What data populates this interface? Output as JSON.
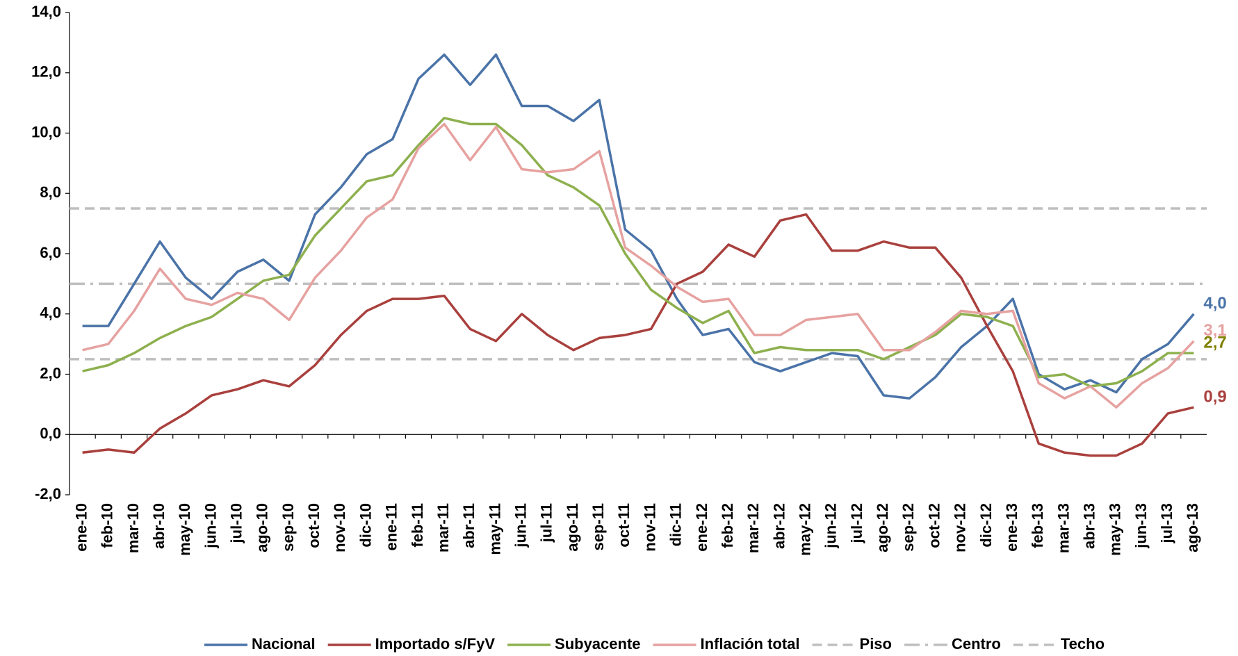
{
  "chart_data": {
    "type": "line",
    "categories": [
      "ene-10",
      "feb-10",
      "mar-10",
      "abr-10",
      "may-10",
      "jun-10",
      "jul-10",
      "ago-10",
      "sep-10",
      "oct-10",
      "nov-10",
      "dic-10",
      "ene-11",
      "feb-11",
      "mar-11",
      "abr-11",
      "may-11",
      "jun-11",
      "jul-11",
      "ago-11",
      "sep-11",
      "oct-11",
      "nov-11",
      "dic-11",
      "ene-12",
      "feb-12",
      "mar-12",
      "abr-12",
      "may-12",
      "jun-12",
      "jul-12",
      "ago-12",
      "sep-12",
      "oct-12",
      "nov-12",
      "dic-12",
      "ene-13",
      "feb-13",
      "mar-13",
      "abr-13",
      "may-13",
      "jun-13",
      "jul-13",
      "ago-13"
    ],
    "series": [
      {
        "name": "Nacional",
        "color": "#4a73a8",
        "label_color": "#4a73a8",
        "values": [
          3.6,
          3.6,
          5.0,
          6.4,
          5.2,
          4.5,
          5.4,
          5.8,
          5.1,
          7.3,
          8.2,
          9.3,
          9.8,
          11.8,
          12.6,
          11.6,
          12.6,
          10.9,
          10.9,
          10.4,
          11.1,
          6.8,
          6.1,
          4.5,
          3.3,
          3.5,
          2.4,
          2.1,
          2.4,
          2.7,
          2.6,
          1.3,
          1.2,
          1.9,
          2.9,
          3.6,
          4.5,
          2.0,
          1.5,
          1.8,
          1.4,
          2.5,
          3.0,
          4.0
        ],
        "value_labels": [
          null,
          null,
          null,
          null,
          null,
          null,
          null,
          null,
          null,
          null,
          null,
          null,
          null,
          null,
          null,
          null,
          null,
          null,
          null,
          null,
          null,
          null,
          null,
          null,
          null,
          null,
          null,
          null,
          null,
          null,
          null,
          null,
          null,
          null,
          null,
          null,
          null,
          null,
          null,
          null,
          null,
          null,
          null,
          "4,0"
        ]
      },
      {
        "name": "Importado s/FyV",
        "color": "#a9403d",
        "label_color": "#a9403d",
        "values": [
          -0.6,
          -0.5,
          -0.6,
          0.2,
          0.7,
          1.3,
          1.5,
          1.8,
          1.6,
          2.3,
          3.3,
          4.1,
          4.5,
          4.5,
          4.6,
          3.5,
          3.1,
          4.0,
          3.3,
          2.8,
          3.2,
          3.3,
          3.5,
          5.0,
          5.4,
          6.3,
          5.9,
          7.1,
          7.3,
          6.1,
          6.1,
          6.4,
          6.2,
          6.2,
          5.2,
          3.6,
          2.1,
          -0.3,
          -0.6,
          -0.7,
          -0.7,
          -0.3,
          0.7,
          0.9
        ],
        "value_labels": [
          null,
          null,
          null,
          null,
          null,
          null,
          null,
          null,
          null,
          null,
          null,
          null,
          null,
          null,
          null,
          null,
          null,
          null,
          null,
          null,
          null,
          null,
          null,
          null,
          null,
          null,
          null,
          null,
          null,
          null,
          null,
          null,
          null,
          null,
          null,
          null,
          null,
          null,
          null,
          null,
          null,
          null,
          null,
          "0,9"
        ]
      },
      {
        "name": "Subyacente",
        "color": "#8db04e",
        "label_color": "#7f7f00",
        "values": [
          2.1,
          2.3,
          2.7,
          3.2,
          3.6,
          3.9,
          4.5,
          5.1,
          5.3,
          6.6,
          7.5,
          8.4,
          8.6,
          9.6,
          10.5,
          10.3,
          10.3,
          9.6,
          8.6,
          8.2,
          7.6,
          6.0,
          4.8,
          4.2,
          3.7,
          4.1,
          2.7,
          2.9,
          2.8,
          2.8,
          2.8,
          2.5,
          2.9,
          3.3,
          4.0,
          3.9,
          3.6,
          1.9,
          2.0,
          1.6,
          1.7,
          2.1,
          2.7,
          2.7
        ],
        "value_labels": [
          null,
          null,
          null,
          null,
          null,
          null,
          null,
          null,
          null,
          null,
          null,
          null,
          null,
          null,
          null,
          null,
          null,
          null,
          null,
          null,
          null,
          null,
          null,
          null,
          null,
          null,
          null,
          null,
          null,
          null,
          null,
          null,
          null,
          null,
          null,
          null,
          null,
          null,
          null,
          null,
          null,
          null,
          null,
          "2,7"
        ]
      },
      {
        "name": "Inflación total",
        "color": "#e6a2a0",
        "label_color": "#e6a2a0",
        "values": [
          2.8,
          3.0,
          4.1,
          5.5,
          4.5,
          4.3,
          4.7,
          4.5,
          3.8,
          5.2,
          6.1,
          7.2,
          7.8,
          9.5,
          10.3,
          9.1,
          10.2,
          8.8,
          8.7,
          8.8,
          9.4,
          6.2,
          5.6,
          4.9,
          4.4,
          4.5,
          3.3,
          3.3,
          3.8,
          3.9,
          4.0,
          2.8,
          2.8,
          3.4,
          4.1,
          4.0,
          4.1,
          1.7,
          1.2,
          1.6,
          0.9,
          1.7,
          2.2,
          3.1
        ],
        "value_labels": [
          null,
          null,
          null,
          null,
          null,
          null,
          null,
          null,
          null,
          null,
          null,
          null,
          null,
          null,
          null,
          null,
          null,
          null,
          null,
          null,
          null,
          null,
          null,
          null,
          null,
          null,
          null,
          null,
          null,
          null,
          null,
          null,
          null,
          null,
          null,
          null,
          null,
          null,
          null,
          null,
          null,
          null,
          null,
          "3,1"
        ]
      }
    ],
    "reference_lines": [
      {
        "name": "Piso",
        "value": 2.5,
        "color": "#bfbfbf",
        "dash": "dashed"
      },
      {
        "name": "Centro",
        "value": 5.0,
        "color": "#bfbfbf",
        "dash": "dashdot"
      },
      {
        "name": "Techo",
        "value": 7.5,
        "color": "#bfbfbf",
        "dash": "dashed"
      }
    ],
    "ylim": [
      -2,
      14
    ],
    "yticks": [
      {
        "value": -2,
        "label": "-2,0"
      },
      {
        "value": 0,
        "label": "0,0"
      },
      {
        "value": 2,
        "label": "2,0"
      },
      {
        "value": 4,
        "label": "4,0"
      },
      {
        "value": 6,
        "label": "6,0"
      },
      {
        "value": 8,
        "label": "8,0"
      },
      {
        "value": 10,
        "label": "10,0"
      },
      {
        "value": 12,
        "label": "12,0"
      },
      {
        "value": 14,
        "label": "14,0"
      }
    ],
    "grid": false,
    "legend": "bottom"
  }
}
